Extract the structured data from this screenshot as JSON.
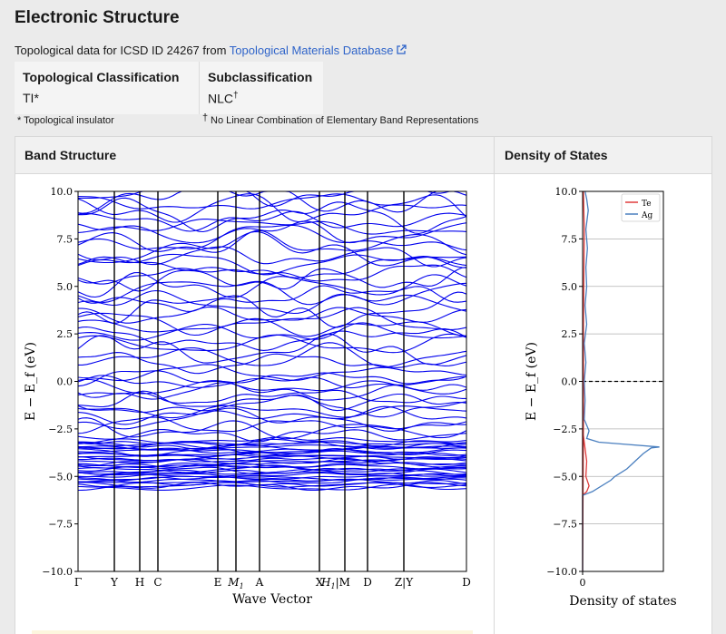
{
  "title": "Electronic Structure",
  "source": {
    "prefix": "Topological data for ICSD ID 24267 from ",
    "link_text": "Topological Materials Database",
    "icon": "external-link-icon"
  },
  "classification": {
    "col1_header": "Topological Classification",
    "col1_value": "TI*",
    "col2_header": "Subclassification",
    "col2_value": "NLC",
    "col2_mark": "†"
  },
  "footnotes": {
    "star": "* Topological insulator",
    "dagger_mark": "†",
    "dagger": "No Linear Combination of Elementary Band Representations"
  },
  "panels": {
    "band_title": "Band Structure",
    "dos_title": "Density of States"
  },
  "chart_data": [
    {
      "type": "line",
      "title": "Band Structure",
      "xlabel": "Wave Vector",
      "ylabel": "E − E_f (eV)",
      "ylim": [
        -10,
        10
      ],
      "yticks": [
        "10.0",
        "7.5",
        "5.0",
        "2.5",
        "0.0",
        "−2.5",
        "−5.0",
        "−7.5",
        "−10.0"
      ],
      "kpoint_labels": [
        "Γ",
        "Y",
        "H",
        "C",
        "E",
        "M1",
        "A",
        "X",
        "H1|M",
        "D",
        "Z|Y",
        "D"
      ],
      "color": "#0000ee",
      "core_band_range": [
        -5.7,
        -3.2
      ]
    },
    {
      "type": "line",
      "title": "Density of States",
      "xlabel": "Density of states",
      "ylabel": "E − E_f (eV)",
      "ylim": [
        -10,
        10
      ],
      "yticks": [
        "10.0",
        "7.5",
        "5.0",
        "2.5",
        "0.0",
        "−2.5",
        "−5.0",
        "−7.5",
        "−10.0"
      ],
      "xticks": [
        "0"
      ],
      "fermi_level": 0,
      "legend_position": "top-right",
      "series": [
        {
          "name": "Te",
          "color": "#e03c3c",
          "points": [
            [
              0,
              -10
            ],
            [
              0,
              -2.5
            ],
            [
              0.02,
              -3.2
            ],
            [
              0.05,
              -4.2
            ],
            [
              0.04,
              -5
            ],
            [
              0.08,
              -5.5
            ],
            [
              0.05,
              -5.8
            ],
            [
              0,
              -6
            ],
            [
              0,
              -9.9
            ],
            [
              0.01,
              -2
            ],
            [
              0.01,
              3
            ],
            [
              0.02,
              8
            ],
            [
              0.01,
              10
            ]
          ]
        },
        {
          "name": "Ag",
          "color": "#4a7fbf",
          "points": [
            [
              0,
              -10
            ],
            [
              0,
              -6
            ],
            [
              0.12,
              -5.8
            ],
            [
              0.35,
              -5.2
            ],
            [
              0.4,
              -5
            ],
            [
              0.55,
              -4.6
            ],
            [
              0.65,
              -4.2
            ],
            [
              0.75,
              -3.8
            ],
            [
              0.85,
              -3.5
            ],
            [
              0.95,
              -3.45
            ],
            [
              0.5,
              -3.3
            ],
            [
              0.2,
              -3.2
            ],
            [
              0.05,
              -3
            ],
            [
              0.08,
              -2.6
            ],
            [
              0.02,
              -2
            ],
            [
              0.03,
              -1
            ],
            [
              0.02,
              0
            ],
            [
              0.04,
              1
            ],
            [
              0.02,
              2
            ],
            [
              0.05,
              3
            ],
            [
              0.03,
              4
            ],
            [
              0.05,
              5
            ],
            [
              0.04,
              6
            ],
            [
              0.06,
              7
            ],
            [
              0.04,
              8
            ],
            [
              0.07,
              9
            ],
            [
              0.05,
              9.6
            ],
            [
              0.03,
              10
            ]
          ]
        }
      ]
    }
  ]
}
